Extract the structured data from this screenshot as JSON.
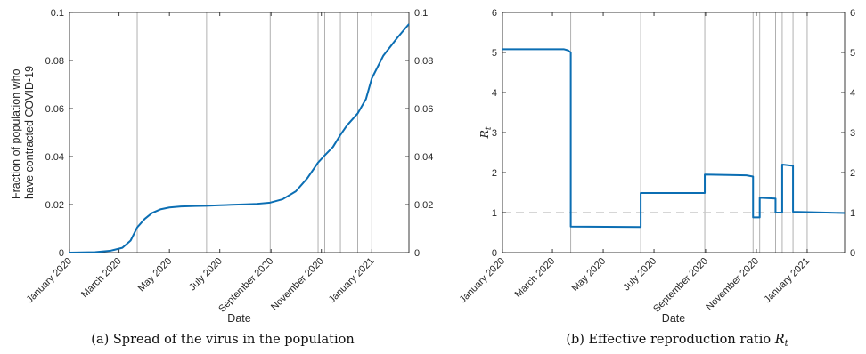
{
  "chart_data": [
    {
      "type": "line",
      "caption": "(a) Spread of the virus in the population",
      "xlabel": "Date",
      "ylabel_lines": [
        "Fraction of population who",
        "have contracted COVID-19"
      ],
      "x_domain": [
        "2020-01-01",
        "2021-02-15"
      ],
      "x_tick_dates": [
        "2020-01-01",
        "2020-03-01",
        "2020-05-01",
        "2020-07-01",
        "2020-09-01",
        "2020-11-01",
        "2021-01-01"
      ],
      "x_tick_labels": [
        "January 2020",
        "March 2020",
        "May 2020",
        "July 2020",
        "September 2020",
        "November 2020",
        "January 2021"
      ],
      "ylim": [
        0,
        0.1
      ],
      "y_ticks": [
        0,
        0.02,
        0.04,
        0.06,
        0.08,
        0.1
      ],
      "y_tick_labels": [
        "0",
        "0.02",
        "0.04",
        "0.06",
        "0.08",
        "0.1"
      ],
      "right_axis_ticks": true,
      "vertical_lines": [
        "2020-03-23",
        "2020-06-15",
        "2020-08-31",
        "2020-10-28",
        "2020-11-05",
        "2020-11-24",
        "2020-12-02",
        "2020-12-15",
        "2021-01-01"
      ],
      "series": [
        {
          "color": "#0b6eb3",
          "points": [
            [
              "2020-01-01",
              0
            ],
            [
              "2020-02-01",
              0.0002
            ],
            [
              "2020-02-20",
              0.0008
            ],
            [
              "2020-03-05",
              0.002
            ],
            [
              "2020-03-15",
              0.005
            ],
            [
              "2020-03-23",
              0.0105
            ],
            [
              "2020-04-01",
              0.014
            ],
            [
              "2020-04-10",
              0.0165
            ],
            [
              "2020-04-20",
              0.018
            ],
            [
              "2020-05-01",
              0.0188
            ],
            [
              "2020-05-15",
              0.0192
            ],
            [
              "2020-06-01",
              0.0194
            ],
            [
              "2020-06-15",
              0.0195
            ],
            [
              "2020-07-01",
              0.0197
            ],
            [
              "2020-07-15",
              0.0199
            ],
            [
              "2020-08-01",
              0.0201
            ],
            [
              "2020-08-15",
              0.0203
            ],
            [
              "2020-08-31",
              0.0208
            ],
            [
              "2020-09-15",
              0.0222
            ],
            [
              "2020-10-01",
              0.0255
            ],
            [
              "2020-10-15",
              0.031
            ],
            [
              "2020-10-28",
              0.0375
            ],
            [
              "2020-11-05",
              0.0405
            ],
            [
              "2020-11-15",
              0.044
            ],
            [
              "2020-11-24",
              0.049
            ],
            [
              "2020-12-02",
              0.053
            ],
            [
              "2020-12-15",
              0.058
            ],
            [
              "2020-12-25",
              0.064
            ],
            [
              "2021-01-01",
              0.0725
            ],
            [
              "2021-01-15",
              0.082
            ],
            [
              "2021-02-01",
              0.0895
            ],
            [
              "2021-02-15",
              0.0952
            ]
          ]
        }
      ]
    },
    {
      "type": "line",
      "caption_text": "(b) Effective reproduction ratio ",
      "caption_sym": "R",
      "caption_sub": "t",
      "xlabel": "Date",
      "ylabel_sym": "R",
      "ylabel_sub": "t",
      "x_domain": [
        "2020-01-01",
        "2021-02-15"
      ],
      "x_tick_dates": [
        "2020-01-01",
        "2020-03-01",
        "2020-05-01",
        "2020-07-01",
        "2020-09-01",
        "2020-11-01",
        "2021-01-01"
      ],
      "x_tick_labels": [
        "January 2020",
        "March 2020",
        "May 2020",
        "July 2020",
        "September 2020",
        "November 2020",
        "January 2021"
      ],
      "ylim": [
        0,
        6
      ],
      "y_ticks": [
        0,
        1,
        2,
        3,
        4,
        5,
        6
      ],
      "y_tick_labels": [
        "0",
        "1",
        "2",
        "3",
        "4",
        "5",
        "6"
      ],
      "right_axis_ticks": true,
      "reference_line": 1,
      "vertical_lines": [
        "2020-03-23",
        "2020-06-15",
        "2020-08-31",
        "2020-10-28",
        "2020-11-05",
        "2020-11-24",
        "2020-12-02",
        "2020-12-15",
        "2021-01-01"
      ],
      "series": [
        {
          "color": "#0b6eb3",
          "points": [
            [
              "2020-01-01",
              5.08
            ],
            [
              "2020-03-15",
              5.08
            ],
            [
              "2020-03-20",
              5.05
            ],
            [
              "2020-03-23",
              5.0
            ],
            [
              "2020-03-23",
              0.65
            ],
            [
              "2020-06-15",
              0.64
            ],
            [
              "2020-06-15",
              1.49
            ],
            [
              "2020-08-31",
              1.49
            ],
            [
              "2020-08-31",
              1.95
            ],
            [
              "2020-10-20",
              1.93
            ],
            [
              "2020-10-28",
              1.9
            ],
            [
              "2020-10-28",
              0.88
            ],
            [
              "2020-11-05",
              0.88
            ],
            [
              "2020-11-05",
              1.37
            ],
            [
              "2020-11-24",
              1.35
            ],
            [
              "2020-11-24",
              1.0
            ],
            [
              "2020-12-02",
              1.0
            ],
            [
              "2020-12-02",
              2.2
            ],
            [
              "2020-12-15",
              2.17
            ],
            [
              "2020-12-15",
              1.02
            ],
            [
              "2021-02-15",
              0.99
            ]
          ]
        }
      ]
    }
  ]
}
